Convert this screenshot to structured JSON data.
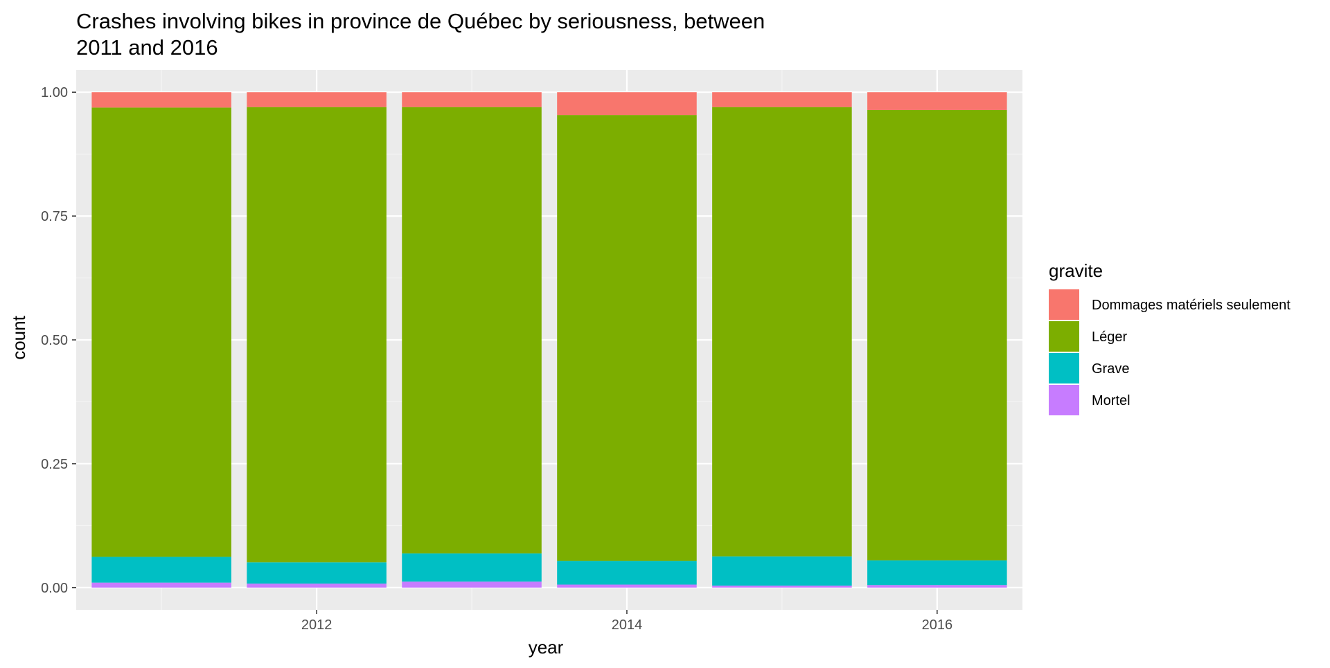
{
  "chart_data": {
    "type": "bar",
    "stacked": "fill",
    "title": "Crashes involving bikes in province de Québec by seriousness, between 2011 and 2016",
    "title_lines": [
      "Crashes involving bikes in province de Québec by seriousness, between",
      "2011 and 2016"
    ],
    "xlabel": "year",
    "ylabel": "count",
    "x": [
      2011,
      2012,
      2013,
      2014,
      2015,
      2016
    ],
    "xlim": [
      2010.45,
      2016.55
    ],
    "x_ticks": [
      2012,
      2014,
      2016
    ],
    "x_tick_labels": [
      "2012",
      "2014",
      "2016"
    ],
    "ylim": [
      -0.045,
      1.045
    ],
    "y_ticks": [
      0,
      0.25,
      0.5,
      0.75,
      1.0
    ],
    "y_tick_labels": [
      "0.00",
      "0.25",
      "0.50",
      "0.75",
      "1.00"
    ],
    "grid": true,
    "legend_title": "gravite",
    "legend_position": "right",
    "series": [
      {
        "name": "Mortel",
        "color": "#C77CFF",
        "values": [
          0.01,
          0.008,
          0.012,
          0.006,
          0.004,
          0.005
        ]
      },
      {
        "name": "Grave",
        "color": "#00BFC4",
        "values": [
          0.052,
          0.043,
          0.057,
          0.048,
          0.059,
          0.05
        ]
      },
      {
        "name": "Léger",
        "color": "#7CAE00",
        "values": [
          0.907,
          0.919,
          0.901,
          0.9,
          0.907,
          0.909
        ]
      },
      {
        "name": "Dommages matériels seulement",
        "color": "#F8766D",
        "values": [
          0.031,
          0.03,
          0.03,
          0.046,
          0.03,
          0.036
        ]
      }
    ],
    "legend_order": [
      "Dommages matériels seulement",
      "Léger",
      "Grave",
      "Mortel"
    ]
  },
  "colors": {
    "panel_background": "#EBEBEB",
    "grid_major": "#FFFFFF",
    "grid_minor": "#F5F5F5",
    "tick_text": "#4D4D4D",
    "text": "#000000"
  }
}
